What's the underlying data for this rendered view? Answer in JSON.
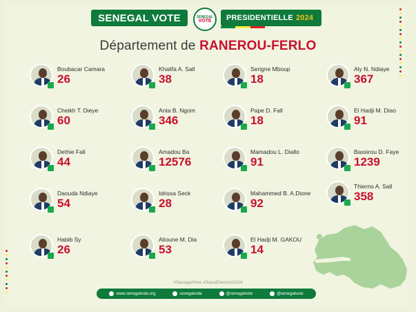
{
  "header": {
    "brand": "SENEGAL VOTE",
    "logo_line1": "SENEGAL",
    "logo_line2": "VOTE",
    "election": "PRESIDENTIELLE",
    "year": "2024",
    "flag_colors": [
      "#00853f",
      "#fdef42",
      "#e31b23"
    ]
  },
  "title": {
    "prefix": "Département de",
    "region": "RANEROU-FERLO"
  },
  "candidates": [
    {
      "name": "Boubacar Camara",
      "votes": "26"
    },
    {
      "name": "Khalifa A. Sall",
      "votes": "38"
    },
    {
      "name": "Serigne Mboup",
      "votes": "18"
    },
    {
      "name": "Aly N. Ndiaye",
      "votes": "367"
    },
    {
      "name": "Cheikh T. Dieye",
      "votes": "60"
    },
    {
      "name": "Anta B. Ngom",
      "votes": "346"
    },
    {
      "name": "Pape D. Fall",
      "votes": "18"
    },
    {
      "name": "El Hadji M. Diao",
      "votes": "91"
    },
    {
      "name": "Dethie Fall",
      "votes": "44"
    },
    {
      "name": "Amadou Ba",
      "votes": "12576"
    },
    {
      "name": "Mamadou L. Diallo",
      "votes": "91"
    },
    {
      "name": "Bassirou D. Faye",
      "votes": "1239"
    },
    {
      "name": "Daouda Ndiaye",
      "votes": "54"
    },
    {
      "name": "Idrissa Seck",
      "votes": "28"
    },
    {
      "name": "Mahammed B. A.Dione",
      "votes": "92"
    },
    {
      "name": "Thierno A. Sall",
      "votes": "358"
    },
    {
      "name": "Habib Sy",
      "votes": "26"
    },
    {
      "name": "Alioune M. Dia",
      "votes": "53"
    },
    {
      "name": "El Hadji M. GAKOU",
      "votes": "14"
    }
  ],
  "hashtags": "#SenegalVote   #SunuElection2024",
  "footer": {
    "website": "www.senegalvote.org",
    "facebook": "senegalvote",
    "twitter": "@senegalvote",
    "instagram": "@senegalvote"
  },
  "colors": {
    "green": "#0e7a3b",
    "red": "#c8102e",
    "map": "#a9d39a"
  }
}
